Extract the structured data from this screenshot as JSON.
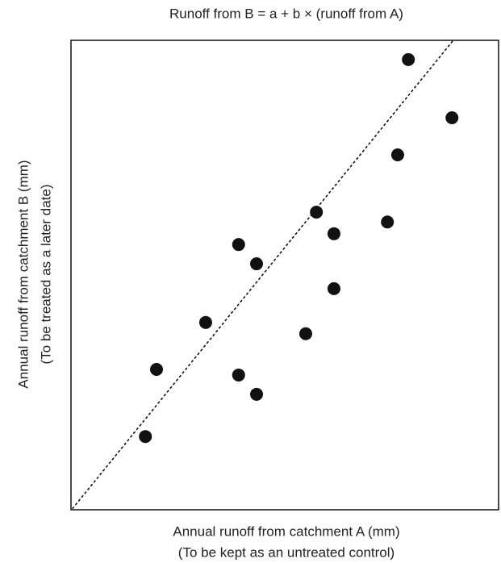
{
  "chart_data": {
    "type": "scatter",
    "title": "Runoff from B = a + b × (runoff from A)",
    "x_label": [
      "Annual runoff from catchment A (mm)",
      "(To be kept as an untreated control)"
    ],
    "y_label": [
      "Annual runoff from catchment B (mm)",
      "(To be treated as a later date)"
    ],
    "xlim": [
      0,
      100
    ],
    "ylim": [
      0,
      100
    ],
    "x": [
      78.9,
      89.1,
      76.4,
      57.4,
      74.0,
      61.5,
      39.2,
      43.4,
      61.5,
      31.5,
      54.9,
      20.0,
      39.2,
      43.4,
      17.4
    ],
    "values": [
      95.9,
      83.5,
      75.6,
      63.4,
      61.3,
      58.8,
      56.5,
      52.4,
      47.1,
      39.9,
      37.5,
      29.9,
      28.7,
      24.6,
      15.6
    ],
    "color": "#111111",
    "fit_line": {
      "x": [
        0.4,
        89.4
      ],
      "y": [
        0.3,
        100
      ]
    },
    "grid": false
  }
}
